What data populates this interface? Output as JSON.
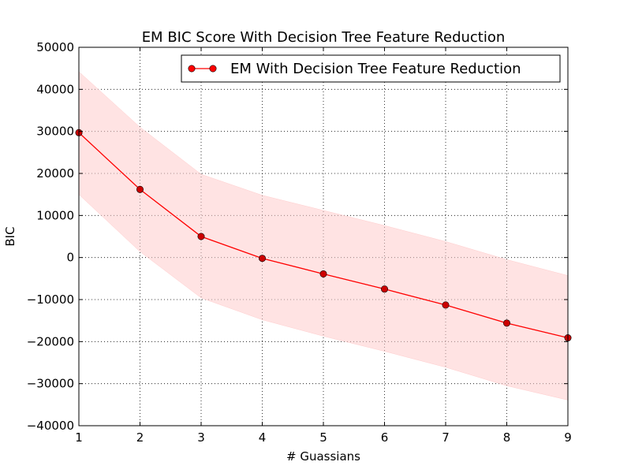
{
  "chart_data": {
    "type": "line",
    "title": "EM BIC Score With Decision Tree Feature Reduction",
    "xlabel": "# Guassians",
    "ylabel": "BIC",
    "xlim": [
      1,
      9
    ],
    "ylim": [
      -40000,
      50000
    ],
    "x_ticks": [
      1,
      2,
      3,
      4,
      5,
      6,
      7,
      8,
      9
    ],
    "y_ticks": [
      -40000,
      -30000,
      -20000,
      -10000,
      0,
      10000,
      20000,
      30000,
      40000,
      50000
    ],
    "x_tick_labels": [
      "1",
      "2",
      "3",
      "4",
      "5",
      "6",
      "7",
      "8",
      "9"
    ],
    "y_tick_labels": [
      "−40000",
      "−30000",
      "−20000",
      "−10000",
      "0",
      "10000",
      "20000",
      "30000",
      "40000",
      "50000"
    ],
    "grid": true,
    "legend_position": "top-right",
    "series": [
      {
        "name": "EM With Decision Tree Feature Reduction",
        "color": "#ff0000",
        "marker_color": "#cc0000",
        "x": [
          1,
          2,
          3,
          4,
          5,
          6,
          7,
          8,
          9
        ],
        "y": [
          29700,
          16200,
          5000,
          -200,
          -3900,
          -7500,
          -11300,
          -15600,
          -19100
        ],
        "band_upper": [
          44200,
          31000,
          19800,
          14800,
          11200,
          7600,
          3800,
          -500,
          -4300
        ],
        "band_lower": [
          15000,
          1400,
          -9600,
          -14800,
          -18700,
          -22300,
          -26100,
          -30500,
          -33900
        ],
        "band_color": "#ffcccc"
      }
    ]
  }
}
